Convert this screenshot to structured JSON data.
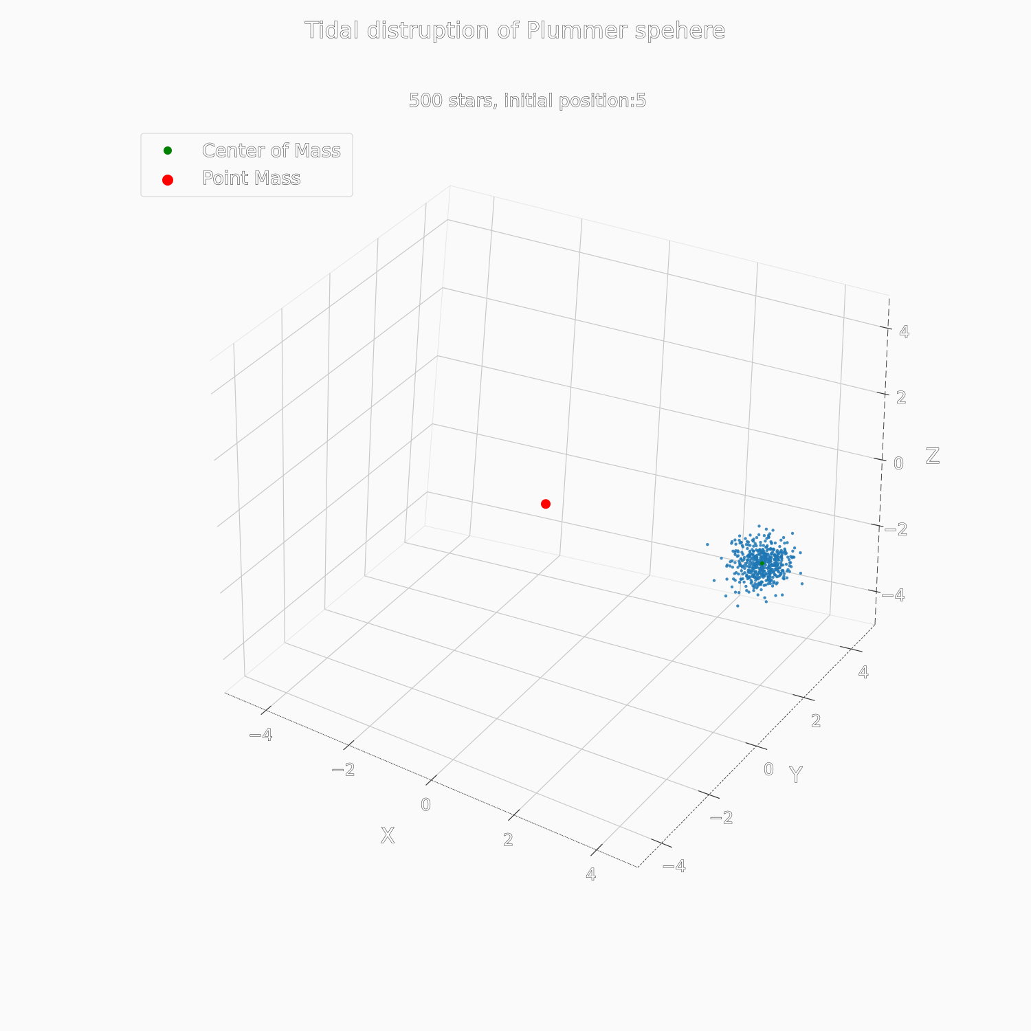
{
  "chart_data": {
    "type": "scatter",
    "projection": "3d",
    "title": "Tidal distruption of Plummer spehere",
    "subtitle": "500 stars, initial position:5",
    "xlabel": "X",
    "ylabel": "Y",
    "zlabel": "Z",
    "xlim": [
      -5,
      5
    ],
    "ylim": [
      -5,
      5
    ],
    "zlim": [
      -5,
      5
    ],
    "xticks": [
      -4,
      -2,
      0,
      2,
      4
    ],
    "yticks": [
      -4,
      -2,
      0,
      2,
      4
    ],
    "zticks": [
      -4,
      -2,
      0,
      2,
      4
    ],
    "x_tick_labels": [
      "−4",
      "−2",
      "0",
      "2",
      "4"
    ],
    "y_tick_labels": [
      "−4",
      "−2",
      "0",
      "2",
      "4"
    ],
    "z_tick_labels": [
      "−4",
      "−2",
      "0",
      "2",
      "4"
    ],
    "grid": true,
    "legend_position": "top-left",
    "series": [
      {
        "name": "Center of Mass",
        "color": "#008000",
        "marker": "circle-small",
        "points": [
          [
            4.9,
            0.1,
            0.0
          ]
        ]
      },
      {
        "name": "Point Mass",
        "color": "#ff0000",
        "marker": "circle-large",
        "points": [
          [
            0.0,
            0.0,
            0.0
          ]
        ]
      },
      {
        "name": "",
        "color": "#1f77b4",
        "marker": "dot",
        "count": 500,
        "center": [
          4.9,
          0.1,
          0.0
        ],
        "spread": 0.3,
        "points": []
      }
    ]
  }
}
